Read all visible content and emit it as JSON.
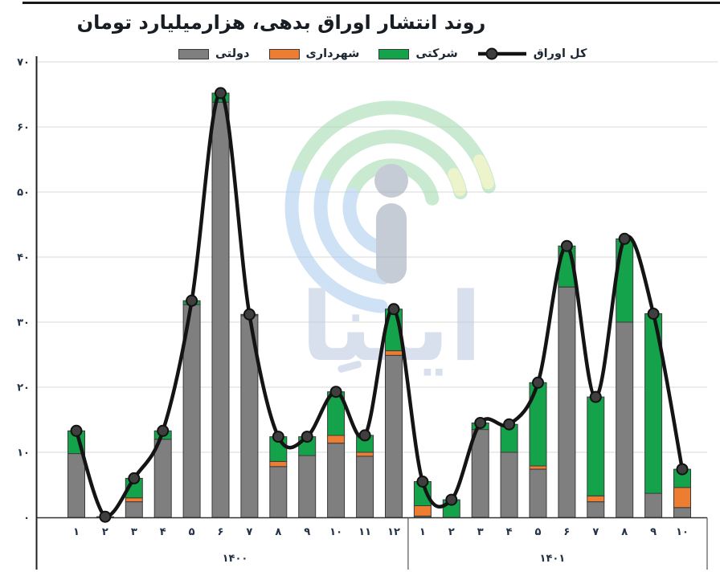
{
  "title": "روند انتشار اوراق بدهی، هزارمیلیارد تومان",
  "legend": {
    "items": [
      {
        "key": "government",
        "label": "دولتی",
        "color": "#7F7F7F",
        "type": "box"
      },
      {
        "key": "municipal",
        "label": "شهرداری",
        "color": "#ED7D31",
        "type": "box"
      },
      {
        "key": "corporate",
        "label": "شرکتی",
        "color": "#14A24B",
        "type": "box"
      },
      {
        "key": "total",
        "label": "کل اوراق",
        "color": "#141414",
        "type": "line-marker"
      }
    ]
  },
  "watermark": {
    "text": "ایبنا",
    "colors": {
      "green": "#9ED9AC",
      "blue": "#A9CBEE",
      "yellow": "#E0EBA2",
      "gray": "#99A3B3",
      "text": "#B9C8DF"
    }
  },
  "chart_data": {
    "type": "stacked-bar+line",
    "title": "روند انتشار اوراق بدهی، هزارمیلیارد تومان",
    "xlabel": "",
    "ylabel": "",
    "ylim": [
      0,
      70
    ],
    "grid": true,
    "legend_position": "top",
    "y_ticks": [
      {
        "value": 0,
        "label": "۰"
      },
      {
        "value": 10,
        "label": "۱۰"
      },
      {
        "value": 20,
        "label": "۲۰"
      },
      {
        "value": 30,
        "label": "۳۰"
      },
      {
        "value": 40,
        "label": "۴۰"
      },
      {
        "value": 50,
        "label": "۵۰"
      },
      {
        "value": 60,
        "label": "۶۰"
      },
      {
        "value": 70,
        "label": "۷۰"
      }
    ],
    "groups": [
      {
        "year_label": "۱۴۰۰",
        "month_labels": [
          "۱",
          "۲",
          "۳",
          "۴",
          "۵",
          "۶",
          "۷",
          "۸",
          "۹",
          "۱۰",
          "۱۱",
          "۱۲"
        ]
      },
      {
        "year_label": "۱۴۰۱",
        "month_labels": [
          "۱",
          "۲",
          "۳",
          "۴",
          "۵",
          "۶",
          "۷",
          "۸",
          "۹",
          "۱۰"
        ]
      }
    ],
    "series": [
      {
        "key": "government",
        "name": "دولتی",
        "render": "bar-stack",
        "color": "#7F7F7F",
        "values": [
          9.8,
          0.1,
          2.4,
          12.0,
          32.7,
          63.8,
          31.0,
          7.8,
          9.5,
          11.4,
          9.4,
          24.9,
          0.2,
          0.0,
          13.5,
          10.0,
          7.4,
          35.4,
          2.4,
          30.0,
          3.7,
          1.5
        ]
      },
      {
        "key": "municipal",
        "name": "شهرداری",
        "render": "bar-stack",
        "color": "#ED7D31",
        "values": [
          0,
          0,
          0.6,
          0,
          0,
          0,
          0,
          0.8,
          0,
          1.2,
          0.6,
          0.7,
          1.6,
          0,
          0,
          0,
          0.5,
          0,
          0.9,
          0,
          0,
          3.1
        ]
      },
      {
        "key": "corporate",
        "name": "شرکتی",
        "render": "bar-stack",
        "color": "#14A24B",
        "values": [
          3.5,
          0,
          3.0,
          1.3,
          0.6,
          1.4,
          0.2,
          3.8,
          2.9,
          6.7,
          2.6,
          6.4,
          3.7,
          2.7,
          1.0,
          4.3,
          12.8,
          6.3,
          15.2,
          12.8,
          27.6,
          2.8
        ]
      },
      {
        "key": "total",
        "name": "کل اوراق",
        "render": "line",
        "color": "#141414",
        "values": [
          13.3,
          0.1,
          6.0,
          13.3,
          33.3,
          65.2,
          31.2,
          12.4,
          12.4,
          19.3,
          12.6,
          32.0,
          5.5,
          2.7,
          14.5,
          14.3,
          20.7,
          41.7,
          18.5,
          42.8,
          31.3,
          7.4
        ]
      }
    ],
    "bar_border_color": "#3A3A3A",
    "marker_fill": "#3F3F3F",
    "gridline_color": "#D9D9D9"
  }
}
